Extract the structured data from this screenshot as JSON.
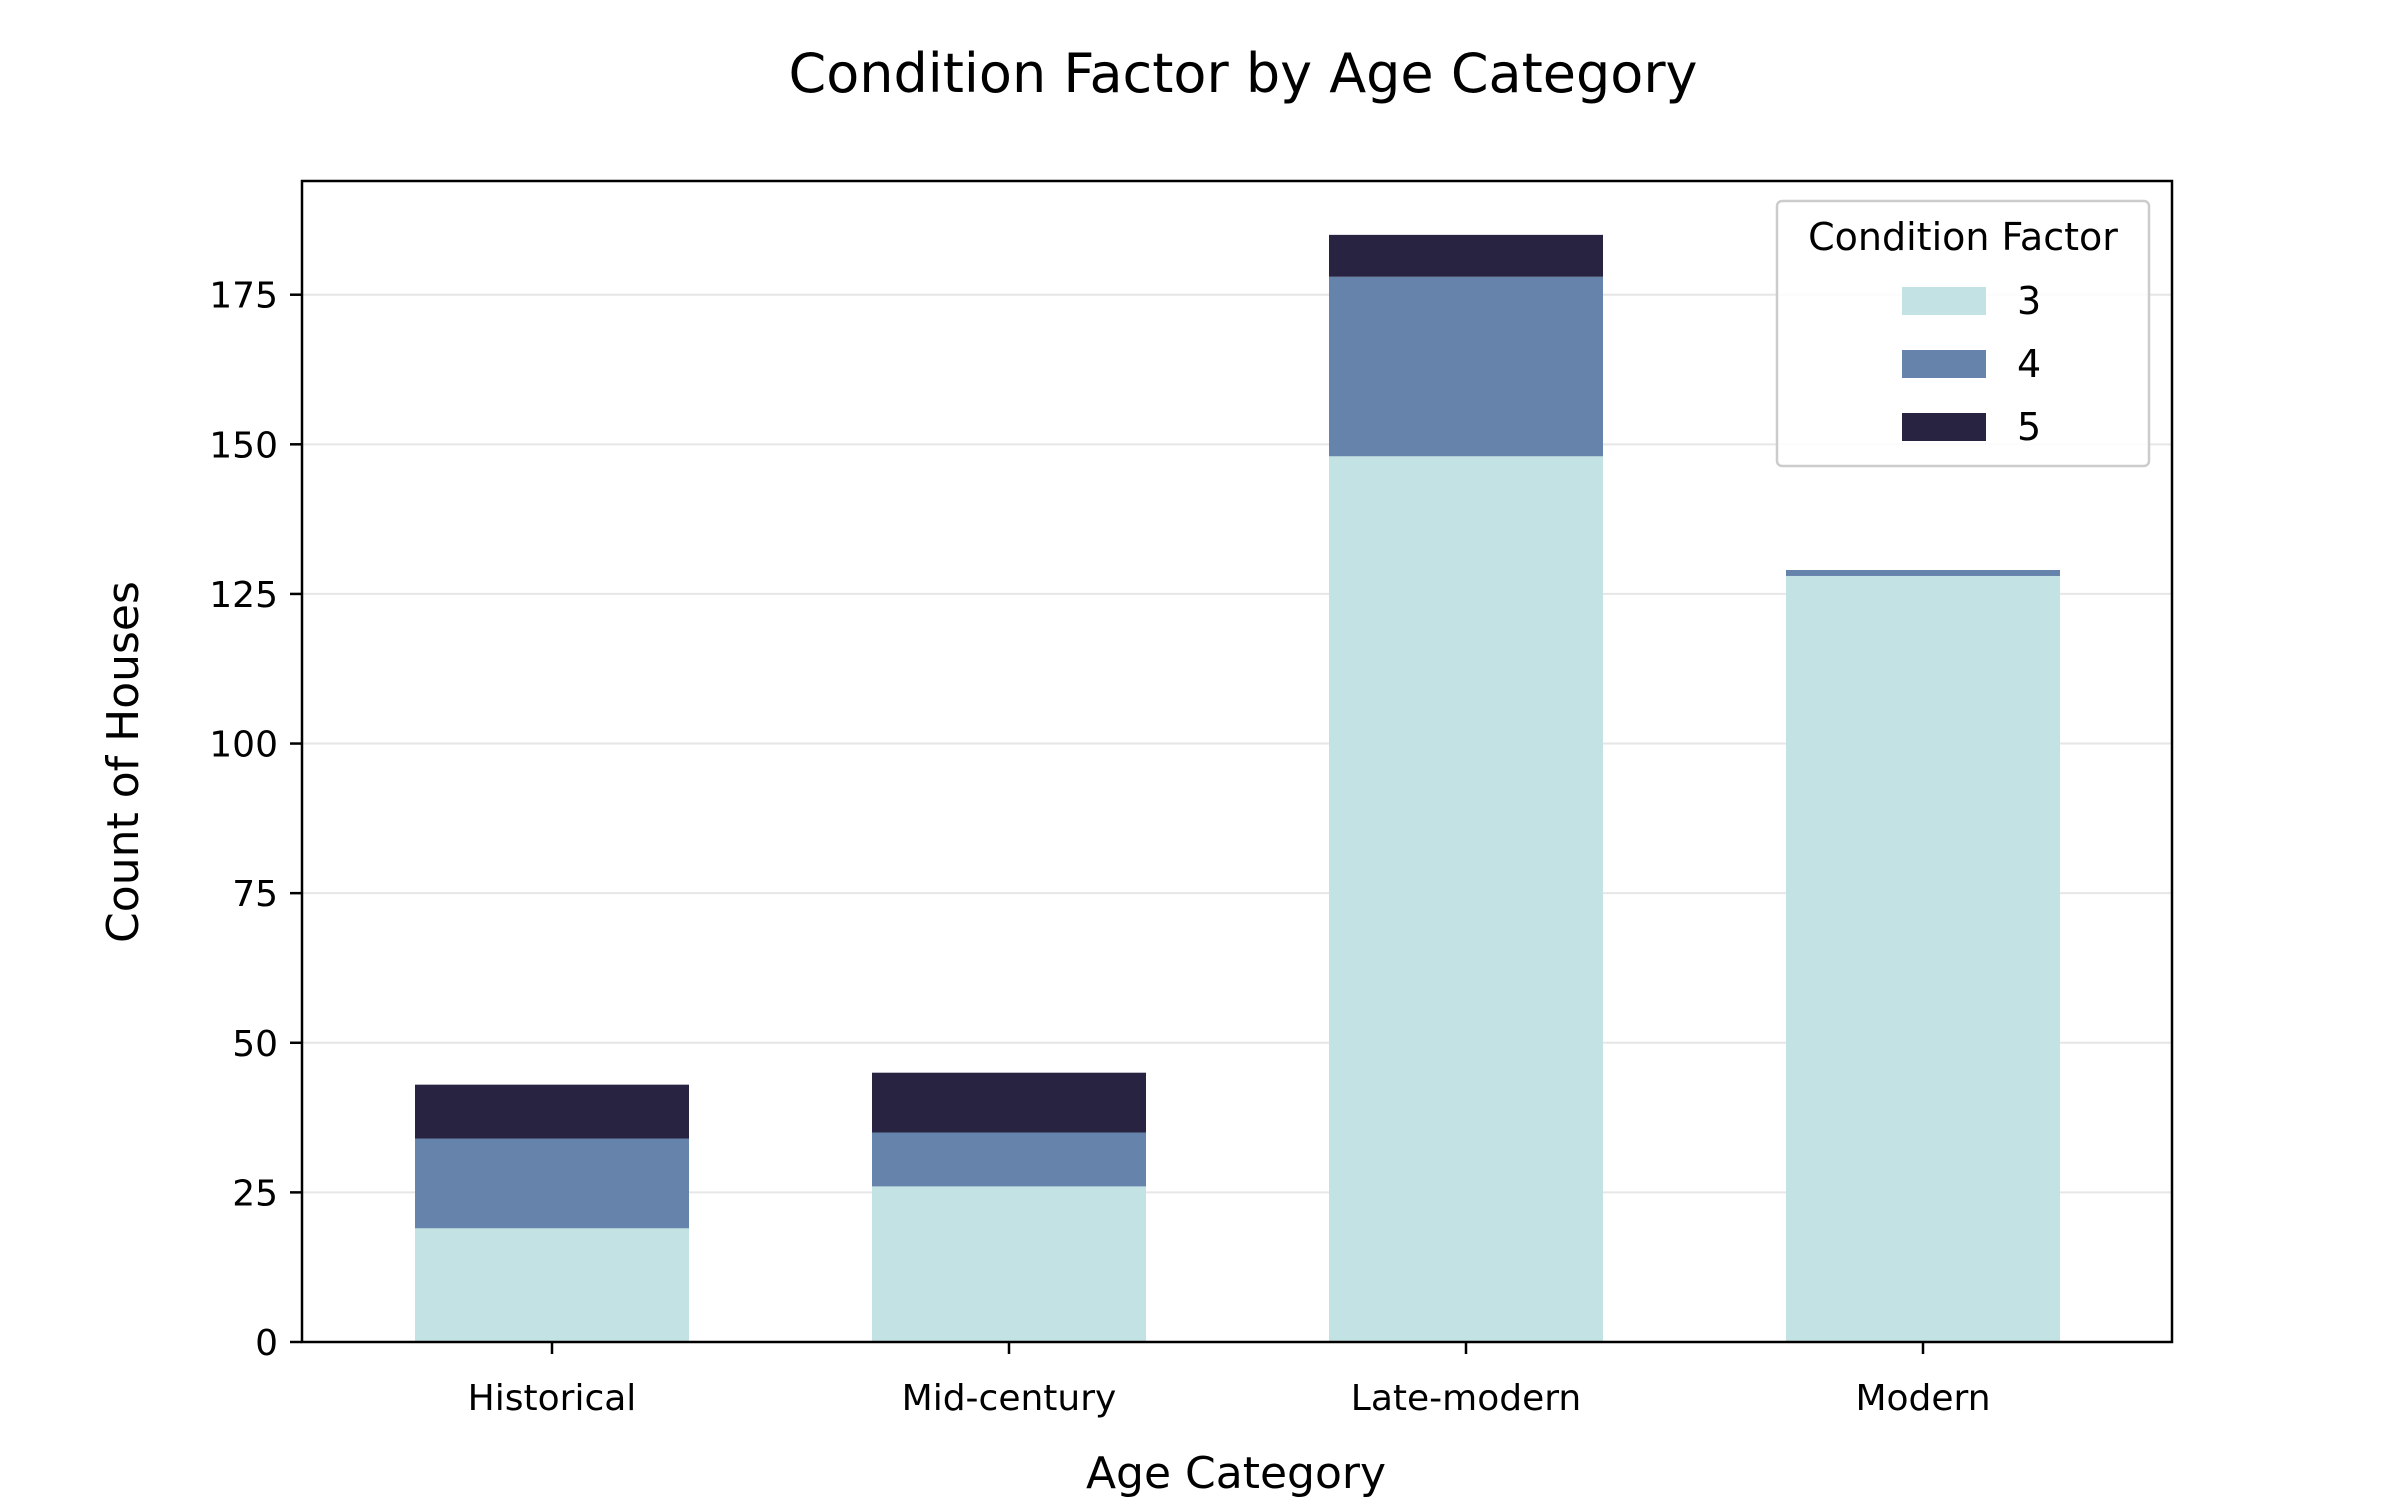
{
  "chart_data": {
    "type": "bar",
    "stacked": true,
    "title": "Condition Factor by Age Category",
    "xlabel": "Age Category",
    "ylabel": "Count of Houses",
    "categories": [
      "Historical",
      "Mid-century",
      "Late-modern",
      "Modern"
    ],
    "series": [
      {
        "name": "3",
        "values": [
          19,
          26,
          148,
          128
        ],
        "color": "#c3e2e4"
      },
      {
        "name": "4",
        "values": [
          15,
          9,
          30,
          1
        ],
        "color": "#6684ab"
      },
      {
        "name": "5",
        "values": [
          9,
          10,
          7,
          0
        ],
        "color": "#282340"
      }
    ],
    "ylim": [
      0,
      194
    ],
    "yticks": [
      0,
      25,
      50,
      75,
      100,
      125,
      150,
      175
    ],
    "grid": "y",
    "legend": {
      "title": "Condition Factor",
      "position": "top-right"
    }
  }
}
